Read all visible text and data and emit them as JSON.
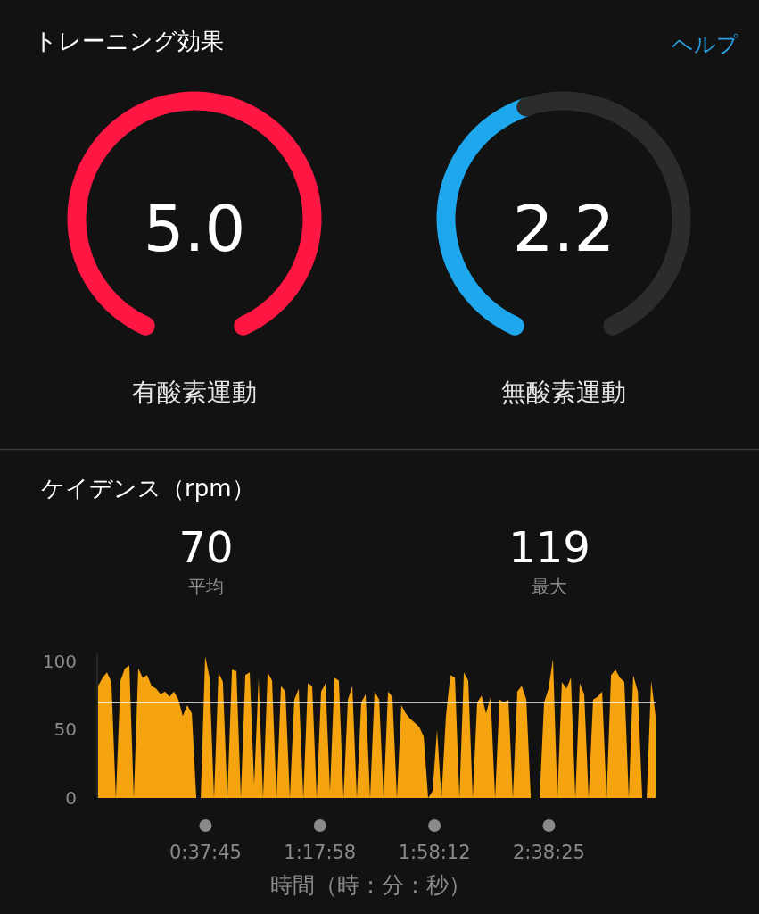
{
  "chart_data": [
    {
      "type": "pie",
      "title": "トレーニング効果",
      "xlabel": "有酸素運動",
      "annotations": [
        "ヘルプ"
      ],
      "categories": [
        null
      ],
      "values": [
        5.0
      ],
      "colors": [
        "#ff1744"
      ],
      "value_labels": [
        "5.0"
      ]
    },
    {
      "type": "donut",
      "xlabel": "無酸素運動",
      "annotations": [
        "2.2"
      ],
      "categories": [
        null,
        null
      ],
      "values": [
        44,
        56
      ],
      "colors": [
        "#1ea7ec",
        "#2c2c2c"
      ]
    },
    {
      "type": "area",
      "title": "ケイデンス（rpm）",
      "annotations": [
        "70",
        "平均",
        "119",
        "最大"
      ],
      "xlabel": "時間（時：分：秒）",
      "x": [
        0.0,
        0.026,
        0.052,
        0.078,
        0.104,
        0.131,
        0.157,
        0.183,
        0.209,
        0.235,
        0.261,
        0.287,
        0.313,
        0.34,
        0.366,
        0.392,
        0.418,
        0.444,
        0.47,
        0.496,
        0.522,
        0.549,
        0.575,
        0.601,
        0.627,
        0.653,
        0.679,
        0.705,
        0.731,
        0.757,
        0.784,
        0.81,
        0.836,
        0.862,
        0.888,
        0.914,
        0.94,
        0.966,
        0.993,
        1.019,
        1.045,
        1.071,
        1.097,
        1.123,
        1.149,
        1.175,
        1.202,
        1.228,
        1.254,
        1.28,
        1.306,
        1.332,
        1.358,
        1.384,
        1.41,
        1.437,
        1.463,
        1.489,
        1.515,
        1.541,
        1.567,
        1.593,
        1.619,
        1.646,
        1.672,
        1.698,
        1.724,
        1.75,
        1.776,
        1.802,
        1.828,
        1.855,
        1.881,
        1.907,
        1.933,
        1.959,
        1.985,
        2.011,
        2.037,
        2.063,
        2.09,
        2.116,
        2.142,
        2.168,
        2.194,
        2.22,
        2.246,
        2.272,
        2.299,
        2.325,
        2.351,
        2.377,
        2.403,
        2.429,
        2.455,
        2.481,
        2.508,
        2.534,
        2.56,
        2.586,
        2.612,
        2.638,
        2.664,
        2.69,
        2.716,
        2.743,
        2.769,
        2.795,
        2.821,
        2.847,
        2.873,
        2.899,
        2.925,
        2.952,
        2.978,
        3.004,
        3.03,
        3.056,
        3.082,
        3.108,
        3.134,
        3.161,
        3.187,
        3.213,
        3.239,
        3.265
      ],
      "series": [
        {
          "color": "#f5a30f",
          "values": [
            82,
            88,
            92,
            85,
            0,
            86,
            95,
            97,
            0,
            95,
            88,
            90,
            82,
            80,
            76,
            78,
            74,
            78,
            72,
            60,
            68,
            62,
            0,
            0,
            104,
            88,
            0,
            92,
            85,
            0,
            94,
            93,
            0,
            90,
            92,
            10,
            88,
            0,
            92,
            86,
            0,
            82,
            78,
            0,
            72,
            80,
            0,
            84,
            82,
            0,
            78,
            84,
            5,
            88,
            86,
            0,
            72,
            82,
            0,
            70,
            76,
            0,
            78,
            72,
            0,
            78,
            74,
            0,
            68,
            62,
            58,
            55,
            52,
            45,
            0,
            5,
            50,
            0,
            60,
            90,
            88,
            0,
            92,
            86,
            0,
            70,
            75,
            62,
            74,
            0,
            72,
            70,
            72,
            0,
            78,
            82,
            72,
            0,
            0,
            0,
            70,
            80,
            102,
            0,
            85,
            80,
            88,
            0,
            84,
            76,
            0,
            72,
            74,
            78,
            0,
            90,
            94,
            88,
            85,
            0,
            90,
            78,
            0,
            0,
            86,
            60
          ]
        }
      ],
      "ref_lines": [
        {
          "axis": "y",
          "value": 70,
          "color": "#ffffff"
        }
      ],
      "xlim": [
        0,
        3.27
      ],
      "xticks": [
        {
          "value": 0.629167,
          "label": "0:37:45"
        },
        {
          "value": 1.299444,
          "label": "1:17:58"
        },
        {
          "value": 1.97,
          "label": "1:58:12"
        },
        {
          "value": 2.640278,
          "label": "2:38:25"
        }
      ],
      "ylim": [
        0,
        106
      ],
      "yticks": [
        0,
        50,
        100
      ]
    }
  ]
}
